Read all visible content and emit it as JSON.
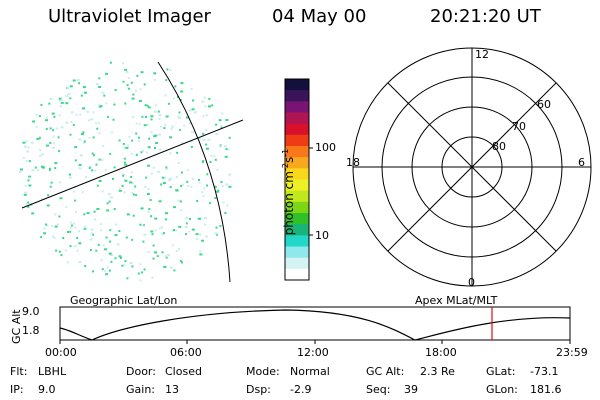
{
  "header": {
    "instrument": "Ultraviolet Imager",
    "date": "04 May 00",
    "time": "20:21:20 UT"
  },
  "colorbar": {
    "unit_main": "photon cm",
    "unit_exp1": "-2",
    "unit_s": "s",
    "unit_exp2": "-1",
    "ticks": [
      "100",
      "10"
    ],
    "colors": [
      "#14103c",
      "#3a1458",
      "#7a1474",
      "#b01452",
      "#d8102a",
      "#f03c14",
      "#f8781a",
      "#f8a81e",
      "#f8d81a",
      "#ecf024",
      "#c0e81c",
      "#7cd614",
      "#30c028",
      "#18b47a",
      "#22d6c8",
      "#8ee8ec",
      "#d4f4f4",
      "#ffffff"
    ]
  },
  "image_panel": {
    "crosshair_note": "",
    "speckle_color": "#3cd68c"
  },
  "polar_plot": {
    "mlt_labels": {
      "top": "12",
      "left": "18",
      "right": "6",
      "bottom": "0"
    },
    "mlat_labels": [
      "60",
      "70",
      "80"
    ]
  },
  "altitude_plot": {
    "left_label": "Geographic Lat/Lon",
    "right_label": "Apex MLat/MLT",
    "y_title": "GC Alt",
    "y_ticks": [
      "9.0",
      "1.8"
    ],
    "x_ticks": [
      "00:00",
      "06:00",
      "12:00",
      "18:00",
      "23:59"
    ],
    "marker_color": "#d81010"
  },
  "status": {
    "flt_label": "Flt:",
    "flt_value": "LBHL",
    "ip_label": "IP:",
    "ip_value": "9.0",
    "door_label": "Door:",
    "door_value": "Closed",
    "gain_label": "Gain:",
    "gain_value": "13",
    "mode_label": "Mode:",
    "mode_value": "Normal",
    "dsp_label": "Dsp:",
    "dsp_value": "-2.9",
    "gcalt_label": "GC Alt:",
    "gcalt_value": "2.3 Re",
    "seq_label": "Seq:",
    "seq_value": "39",
    "glat_label": "GLat:",
    "glat_value": "-73.1",
    "glon_label": "GLon:",
    "glon_value": "181.6"
  }
}
